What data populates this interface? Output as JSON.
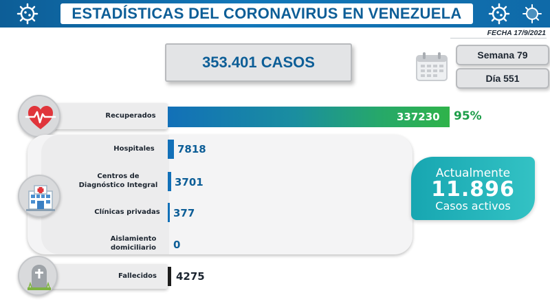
{
  "header": {
    "title": "ESTADÍSTICAS DEL CORONAVIRUS EN VENEZUELA",
    "date": "FECHA 17/9/2021",
    "left_icon": "virus-icon",
    "right_icon": "virus-icon"
  },
  "summary": {
    "cases": "353.401 CASOS",
    "week": "Semana 79",
    "day": "Día 551",
    "calendar_icon": "calendar-icon"
  },
  "recovered": {
    "label": "Recuperados",
    "value": "337230",
    "percent": "95%",
    "icon": "heart-pulse-icon"
  },
  "active_breakdown": {
    "icon": "hospital-icon",
    "rows": [
      {
        "label": "Hospitales",
        "value": "7818"
      },
      {
        "label": "Centros de Diagnóstico Integral",
        "value": "3701"
      },
      {
        "label": "Clínicas privadas",
        "value": "377"
      },
      {
        "label": "Aislamiento domiciliario",
        "value": "0"
      }
    ]
  },
  "active": {
    "top": "Actualmente",
    "number": "11.896",
    "bottom": "Casos activos"
  },
  "deaths": {
    "label": "Fallecidos",
    "value": "4275",
    "icon": "tombstone-icon"
  },
  "colors": {
    "brand_blue": "#0d5e97",
    "recovered_start": "#1270b8",
    "recovered_end": "#2fb34a",
    "percent_green": "#1c9d48",
    "active_teal": "#22b3b8",
    "deaths_bar": "#1c1c1c"
  }
}
